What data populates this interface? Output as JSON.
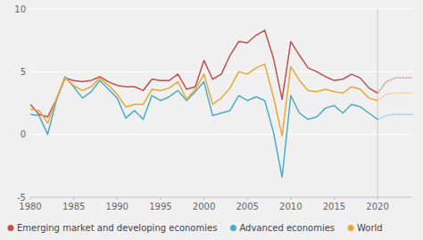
{
  "chart_data": {
    "type": "line",
    "x": [
      1980,
      1981,
      1982,
      1983,
      1984,
      1985,
      1986,
      1987,
      1988,
      1989,
      1990,
      1991,
      1992,
      1993,
      1994,
      1995,
      1996,
      1997,
      1998,
      1999,
      2000,
      2001,
      2002,
      2003,
      2004,
      2005,
      2006,
      2007,
      2008,
      2009,
      2010,
      2011,
      2012,
      2013,
      2014,
      2015,
      2016,
      2017,
      2018,
      2019,
      2020,
      2021,
      2022,
      2023,
      2024
    ],
    "series": [
      {
        "name": "Emerging market and developing economies",
        "color": "#c0504d",
        "line_style": "solid",
        "values": [
          2.4,
          1.6,
          1.4,
          2.8,
          4.5,
          4.3,
          4.2,
          4.3,
          4.6,
          4.2,
          3.9,
          3.8,
          3.8,
          3.5,
          4.4,
          4.3,
          4.3,
          4.8,
          3.6,
          3.8,
          5.9,
          4.4,
          4.8,
          6.3,
          7.4,
          7.3,
          7.9,
          8.3,
          6.1,
          2.8,
          7.4,
          6.3,
          5.3,
          5.0,
          4.6,
          4.3,
          4.4,
          4.8,
          4.5,
          3.7,
          3.3,
          null,
          null,
          null,
          null
        ]
      },
      {
        "name": "Advanced economies",
        "color": "#4bacc6",
        "line_style": "solid",
        "values": [
          1.6,
          1.5,
          0.0,
          2.7,
          4.6,
          3.8,
          2.9,
          3.4,
          4.3,
          3.6,
          2.9,
          1.3,
          1.9,
          1.2,
          3.1,
          2.7,
          3.0,
          3.5,
          2.7,
          3.4,
          4.2,
          1.5,
          1.7,
          1.9,
          3.1,
          2.7,
          3.0,
          2.7,
          0.2,
          -3.4,
          3.1,
          1.7,
          1.2,
          1.4,
          2.1,
          2.3,
          1.7,
          2.4,
          2.2,
          1.7,
          1.2,
          null,
          null,
          null,
          null
        ]
      },
      {
        "name": "World",
        "color": "#e8a838",
        "line_style": "solid",
        "values": [
          2.0,
          1.9,
          0.9,
          2.8,
          4.5,
          3.9,
          3.5,
          3.8,
          4.5,
          3.9,
          3.2,
          2.2,
          2.4,
          2.4,
          3.6,
          3.5,
          3.7,
          4.2,
          2.8,
          3.6,
          4.8,
          2.4,
          2.9,
          3.7,
          5.0,
          4.8,
          5.3,
          5.6,
          3.0,
          -0.1,
          5.4,
          4.3,
          3.5,
          3.4,
          3.6,
          3.4,
          3.3,
          3.8,
          3.6,
          2.9,
          2.7,
          null,
          null,
          null,
          null
        ]
      },
      {
        "color": "#c0504d",
        "line_style": "dotted",
        "values": [
          null,
          null,
          null,
          null,
          null,
          null,
          null,
          null,
          null,
          null,
          null,
          null,
          null,
          null,
          null,
          null,
          null,
          null,
          null,
          null,
          null,
          null,
          null,
          null,
          null,
          null,
          null,
          null,
          null,
          null,
          null,
          null,
          null,
          null,
          null,
          null,
          null,
          null,
          null,
          null,
          3.3,
          4.2,
          4.5,
          4.5,
          4.5
        ]
      },
      {
        "color": "#4bacc6",
        "line_style": "dotted",
        "values": [
          null,
          null,
          null,
          null,
          null,
          null,
          null,
          null,
          null,
          null,
          null,
          null,
          null,
          null,
          null,
          null,
          null,
          null,
          null,
          null,
          null,
          null,
          null,
          null,
          null,
          null,
          null,
          null,
          null,
          null,
          null,
          null,
          null,
          null,
          null,
          null,
          null,
          null,
          null,
          null,
          1.2,
          1.5,
          1.6,
          1.6,
          1.6
        ]
      },
      {
        "color": "#e8a838",
        "line_style": "dotted",
        "values": [
          null,
          null,
          null,
          null,
          null,
          null,
          null,
          null,
          null,
          null,
          null,
          null,
          null,
          null,
          null,
          null,
          null,
          null,
          null,
          null,
          null,
          null,
          null,
          null,
          null,
          null,
          null,
          null,
          null,
          null,
          null,
          null,
          null,
          null,
          null,
          null,
          null,
          null,
          null,
          null,
          2.7,
          3.2,
          3.3,
          3.3,
          3.3
        ]
      }
    ],
    "xlim": [
      1980,
      2024
    ],
    "xticks": [
      1980,
      1985,
      1990,
      1995,
      2000,
      2005,
      2010,
      2015,
      2020
    ],
    "ylim": [
      -5,
      10
    ],
    "yticks": [
      -5,
      0,
      5,
      10
    ],
    "reference_line": 2020,
    "grid": true,
    "legend": "bottom"
  }
}
